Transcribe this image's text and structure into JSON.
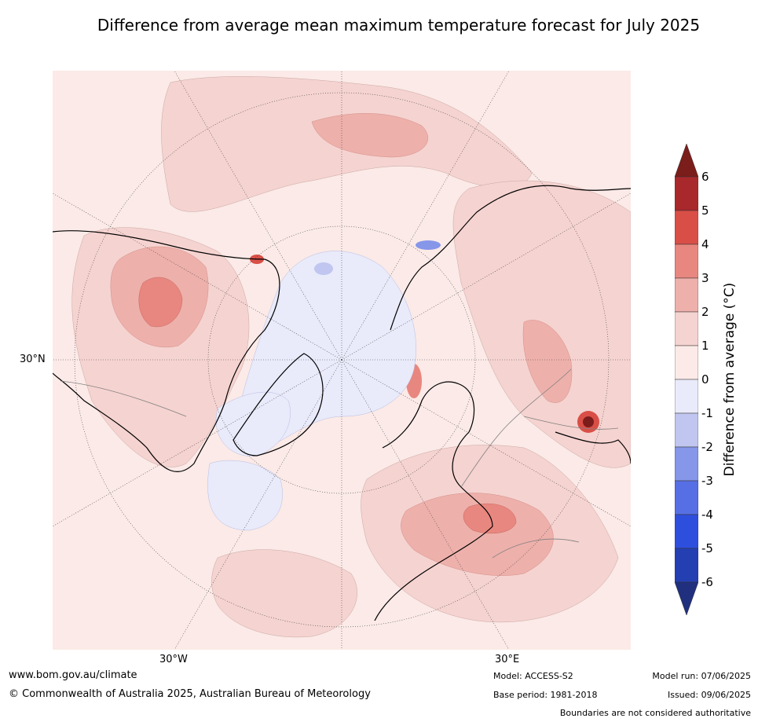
{
  "title": "Difference from average mean maximum temperature forecast for July 2025",
  "map": {
    "projection": "north-polar-stereographic",
    "lat_label": "30°N",
    "lon_labels": [
      "30°W",
      "30°E"
    ],
    "ocean_color": "#fbeae7",
    "anomaly_note": "warmer than average over most of the hemisphere; cooler near-zero band over Arctic Ocean and Greenland; warmest over central-west North America, Black Sea region, northern China/Mongolia"
  },
  "colorbar": {
    "title": "Difference from average (°C)",
    "ticks": [
      "6",
      "5",
      "4",
      "3",
      "2",
      "1",
      "0",
      "-1",
      "-2",
      "-3",
      "-4",
      "-5",
      "-6"
    ],
    "colors": [
      "#7b1d1a",
      "#a9282b",
      "#d94f47",
      "#e8877f",
      "#eeb0ab",
      "#f5d3d0",
      "#fbeae7",
      "#e9eafa",
      "#c0c6ef",
      "#8696e9",
      "#566fe4",
      "#2e4fdd",
      "#243fb2",
      "#20307f"
    ]
  },
  "footer": {
    "url": "www.bom.gov.au/climate",
    "copyright": "© Commonwealth of Australia 2025, Australian Bureau of Meteorology",
    "model": "Model: ACCESS-S2",
    "base_period": "Base period: 1981-2018",
    "model_run": "Model run: 07/06/2025",
    "issued": "Issued: 09/06/2025",
    "disclaimer": "Boundaries are not considered authoritative"
  }
}
